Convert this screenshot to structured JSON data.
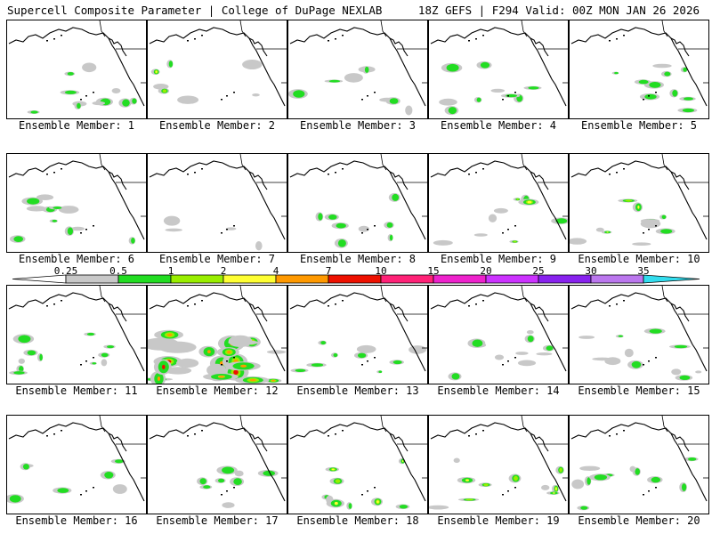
{
  "header": {
    "left_title": "Supercell Composite Parameter | College of DuPage NEXLAB",
    "right_title": "18Z GEFS | F294 Valid: 00Z MON JAN 26 2026"
  },
  "panel_label_prefix": "Ensemble Member: ",
  "members": [
    {
      "id": "1",
      "label": "Ensemble Member: 1",
      "intensity": 1
    },
    {
      "id": "2",
      "label": "Ensemble Member: 2",
      "intensity": 2
    },
    {
      "id": "3",
      "label": "Ensemble Member: 3",
      "intensity": 1
    },
    {
      "id": "4",
      "label": "Ensemble Member: 4",
      "intensity": 1
    },
    {
      "id": "5",
      "label": "Ensemble Member: 5",
      "intensity": 1
    },
    {
      "id": "6",
      "label": "Ensemble Member: 6",
      "intensity": 1
    },
    {
      "id": "7",
      "label": "Ensemble Member: 7",
      "intensity": 0
    },
    {
      "id": "8",
      "label": "Ensemble Member: 8",
      "intensity": 1
    },
    {
      "id": "9",
      "label": "Ensemble Member: 9",
      "intensity": 2
    },
    {
      "id": "10",
      "label": "Ensemble Member: 10",
      "intensity": 2
    },
    {
      "id": "11",
      "label": "Ensemble Member: 11",
      "intensity": 1
    },
    {
      "id": "12",
      "label": "Ensemble Member: 12",
      "intensity": 4
    },
    {
      "id": "13",
      "label": "Ensemble Member: 13",
      "intensity": 1
    },
    {
      "id": "14",
      "label": "Ensemble Member: 14",
      "intensity": 1
    },
    {
      "id": "15",
      "label": "Ensemble Member: 15",
      "intensity": 1
    },
    {
      "id": "16",
      "label": "Ensemble Member: 16",
      "intensity": 1
    },
    {
      "id": "17",
      "label": "Ensemble Member: 17",
      "intensity": 1
    },
    {
      "id": "18",
      "label": "Ensemble Member: 18",
      "intensity": 2
    },
    {
      "id": "19",
      "label": "Ensemble Member: 19",
      "intensity": 2
    },
    {
      "id": "20",
      "label": "Ensemble Member: 20",
      "intensity": 1
    }
  ],
  "colorbar": {
    "labels": [
      "0.25",
      "0.5",
      "1",
      "2",
      "4",
      "7",
      "10",
      "15",
      "20",
      "25",
      "30",
      "35"
    ],
    "colors": [
      "#c8c8c8",
      "#22dd22",
      "#99ee00",
      "#ffff33",
      "#ff9900",
      "#ee1100",
      "#ff2277",
      "#ee22cc",
      "#cc33ff",
      "#8822ee",
      "#bb77ee",
      "#33ddee"
    ]
  },
  "colors": {
    "map_line": "#000000",
    "low": "#c8c8c8",
    "green": "#22dd22",
    "yellowgreen": "#99ee00",
    "yellow": "#ffff33",
    "orange": "#ff9900",
    "red": "#ee1100"
  }
}
